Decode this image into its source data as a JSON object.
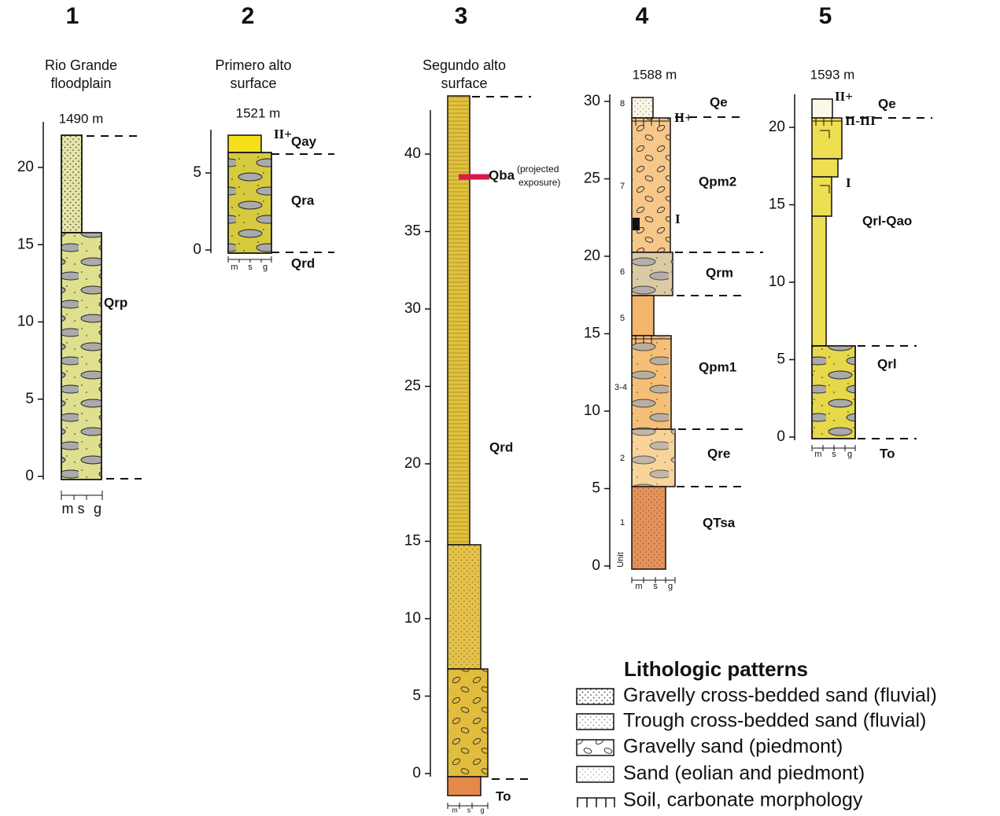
{
  "columns": [
    {
      "number": "1",
      "caption": [
        "Rio Grande",
        "floodplain"
      ],
      "elevation": "1490 m",
      "ticks": [
        0,
        5,
        10,
        15,
        20
      ],
      "labels": [
        "Qrp"
      ],
      "grain_scale": [
        "m",
        "s",
        "g"
      ]
    },
    {
      "number": "2",
      "caption": [
        "Primero alto",
        "surface"
      ],
      "elevation": "1521 m",
      "ticks": [
        0,
        5
      ],
      "labels": [
        "II+",
        "Qay",
        "Qra",
        "Qrd"
      ],
      "grain_scale": [
        "m",
        "s",
        "g"
      ]
    },
    {
      "number": "3",
      "caption": [
        "Segundo alto",
        "surface"
      ],
      "ticks": [
        0,
        5,
        10,
        15,
        20,
        25,
        30,
        35,
        40
      ],
      "labels": [
        "Qba",
        "(projected",
        "exposure)",
        "Qrd",
        "To"
      ],
      "grain_scale": [
        "m",
        "s",
        "g"
      ]
    },
    {
      "number": "4",
      "elevation": "1588 m",
      "ticks": [
        0,
        5,
        10,
        15,
        20,
        25,
        30
      ],
      "unit_title": "Unit",
      "units": [
        "8",
        "7",
        "6",
        "5",
        "3-4",
        "2",
        "1"
      ],
      "labels": [
        "Qe",
        "II+",
        "Qpm2",
        "I",
        "Qrm",
        "Qpm1",
        "Qre",
        "QTsa"
      ],
      "grain_scale": [
        "m",
        "s",
        "g"
      ]
    },
    {
      "number": "5",
      "elevation": "1593 m",
      "ticks": [
        0,
        5,
        10,
        15,
        20
      ],
      "labels": [
        "II+",
        "Qe",
        "II-III",
        "I",
        "Qrl-Qao",
        "Qrl",
        "To"
      ],
      "grain_scale": [
        "m",
        "s",
        "g"
      ]
    }
  ],
  "legend": {
    "title": "Lithologic patterns",
    "items": [
      "Gravelly cross-bedded sand (fluvial)",
      "Trough cross-bedded sand (fluvial)",
      "Gravelly sand (piedmont)",
      "Sand (eolian and piedmont)",
      "Soil, carbonate morphology"
    ]
  }
}
